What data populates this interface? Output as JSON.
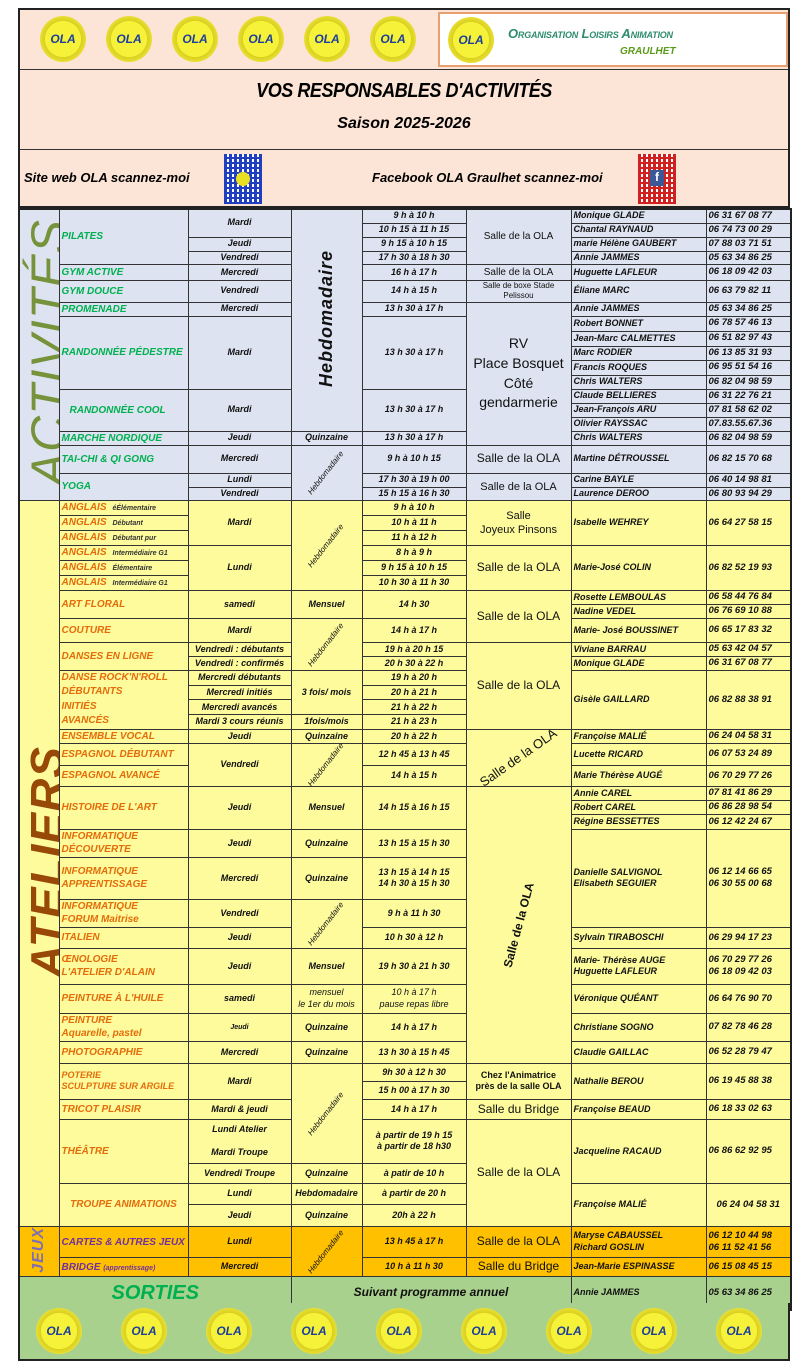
{
  "header": {
    "logo_text": "OLA",
    "org_name": "Organisation Loisirs Animation",
    "city": "GRAULHET",
    "title": "VOS RESPONSABLES D'ACTIVITÉS",
    "season": "Saison 2025-2026"
  },
  "qr": {
    "site_label": "Site web OLA scannez-moi",
    "facebook_label": "Facebook OLA Graulhet scannez-moi",
    "facebook_glyph": "f"
  },
  "colors": {
    "header_bg": "#fce4d6",
    "activites_bg": "#dde3f0",
    "ateliers_bg": "#fdfb9c",
    "jeux_bg": "#ffc000",
    "sorties_bg": "#a9d18e",
    "activites_name": "#00b050",
    "ateliers_name": "#e46c0a",
    "jeux_name": "#7030a0"
  },
  "freq": {
    "weekly": "Hebdomadaire",
    "fortnight": "Quinzaine",
    "monthly": "Mensuel"
  },
  "places": {
    "ola": "Salle de la OLA",
    "bridge": "Salle du Bridge"
  },
  "activites": {
    "label": "ACTIVITÉS",
    "rv_place": "RV\nPlace Bosquet\nCôté\ngendarmerie",
    "items": [
      {
        "name": "PILATES",
        "days": [
          "Mardi",
          "Jeudi",
          "Vendredi"
        ],
        "times": [
          "9 h  à 10 h",
          "10 h 15 à 11 h 15",
          "9 h 15 à 10 h 15",
          "17 h 30 à 18 h 30"
        ],
        "contacts": [
          {
            "name": "Monique GLADE",
            "phone": "06 31 67 08 77"
          },
          {
            "name": "Chantal RAYNAUD",
            "phone": "06 74 73 00 29"
          },
          {
            "name": "marie Hélène GAUBERT",
            "phone": "07 88 03 71 51"
          },
          {
            "name": "Annie JAMMES",
            "phone": "05 63 34 86 25"
          }
        ]
      },
      {
        "name": "GYM ACTIVE",
        "day": "Mercredi",
        "time": "16 h  à 17 h",
        "contacts": [
          {
            "name": "Huguette LAFLEUR",
            "phone": "06 18 09 42 03"
          }
        ]
      },
      {
        "name": "GYM DOUCE",
        "day": "Vendredi",
        "time": "14 h  à 15 h",
        "place": "Salle de boxe Stade Pelissou",
        "contacts": [
          {
            "name": "Éliane MARC",
            "phone": "06 63 79 82 11"
          }
        ]
      },
      {
        "name": "PROMENADE",
        "day": "Mercredi",
        "time": "13 h 30 à 17 h",
        "contacts": [
          {
            "name": "Annie JAMMES",
            "phone": "05 63 34 86 25"
          }
        ]
      },
      {
        "name": "RANDONNÉE PÉDESTRE",
        "day": "Mardi",
        "time": "13 h 30 à 17 h",
        "contacts": [
          {
            "name": "Robert BONNET",
            "phone": "06 78 57 46 13"
          },
          {
            "name": "Jean-Marc CALMETTES",
            "phone": "06 51 82 97 43"
          },
          {
            "name": "Marc RODIER",
            "phone": "06 13 85 31 93"
          },
          {
            "name": "Francis ROQUES",
            "phone": "06 95 51 54 16"
          },
          {
            "name": "Chris WALTERS",
            "phone": "06 82 04 98 59"
          }
        ]
      },
      {
        "name": "RANDONNÉE COOL",
        "day": "Mardi",
        "time": "13 h 30 à 17 h",
        "contacts": [
          {
            "name": "Claude BELLIERES",
            "phone": "06 31 22 76 21"
          },
          {
            "name": "Jean-François ARU",
            "phone": "07 81 58 62 02"
          },
          {
            "name": "Olivier RAYSSAC",
            "phone": "07.83.55.67.36"
          }
        ]
      },
      {
        "name": "MARCHE NORDIQUE",
        "day": "Jeudi",
        "time": "13 h 30 à 17 h",
        "contacts": [
          {
            "name": "Chris WALTERS",
            "phone": "06 82 04 98 59"
          }
        ]
      },
      {
        "name": "TAI-CHI & QI GONG",
        "day": "Mercredi",
        "time": "9 h  à 10 h 15",
        "contacts": [
          {
            "name": "Martine DÉTROUSSEL",
            "phone": "06 82 15 70 68"
          }
        ]
      },
      {
        "name": "YOGA",
        "days": [
          "Lundi",
          "Vendredi"
        ],
        "times": [
          "17 h 30 à 19 h 00",
          "15 h 15 à 16 h 30"
        ],
        "contacts": [
          {
            "name": "Carine BAYLE",
            "phone": "06 40 14 98 81"
          },
          {
            "name": "Laurence DEROO",
            "phone": "06 80 93 94 29"
          }
        ]
      }
    ]
  },
  "ateliers": {
    "label": "ATELIERS",
    "anglais": {
      "name": "ANGLAIS",
      "levels": [
        "éÉlémentaire",
        "Débutant",
        "Débutant pur",
        "Intermédiaire   G1",
        "Élémentaire",
        "Intermédiaire   G1"
      ],
      "times": [
        "9 h  à 10 h",
        "10 h  à 11 h",
        "11 h  à 12 h",
        "8 h à 9 h",
        "9 h 15 à 10 h 15",
        "10 h 30 à 11 h 30"
      ],
      "days": [
        "Mardi",
        "Lundi"
      ],
      "places": [
        "Salle\nJoyeux Pinsons",
        "Salle de la OLA"
      ],
      "contacts": [
        {
          "name": "Isabelle WEHREY",
          "phone": "06 64 27 58 15"
        },
        {
          "name": "Marie-José COLIN",
          "phone": "06 82 52 19 93"
        }
      ]
    },
    "items": [
      {
        "name": "ART FLORAL",
        "day": "samedi",
        "freq": "Mensuel",
        "time": "14 h 30",
        "contacts": [
          {
            "name": "Rosette LEMBOULAS",
            "phone": "06 58 44 76 84"
          },
          {
            "name": "Nadine VEDEL",
            "phone": "06 76 69 10 88"
          }
        ]
      },
      {
        "name": "COUTURE",
        "day": "Mardi",
        "time": "14 h  à 17 h",
        "contacts": [
          {
            "name": "Marie- José BOUSSINET",
            "phone": "06 65 17 83 32"
          }
        ]
      },
      {
        "name": "DANSES EN LIGNE",
        "days": [
          "Vendredi : débutants",
          "Vendredi : confirmés"
        ],
        "times": [
          "19 h à 20 h 15",
          "20 h 30 à 22 h"
        ],
        "contacts": [
          {
            "name": "Viviane BARRAU",
            "phone": "05 63 42 04 57"
          },
          {
            "name": "Monique GLADE",
            "phone": "06 31 67 08 77"
          }
        ]
      },
      {
        "name": "DANSE ROCK'N'ROLL\nDÉBUTANTS\nINITIÉS\nAVANCÉS",
        "days": [
          "Mercredi débutants",
          "Mercredi initiés",
          "Mercredi avancés",
          "Mardi 3 cours réunis"
        ],
        "freqs": [
          "3 fois/ mois",
          "1fois/mois"
        ],
        "times": [
          "19 h  à 20 h",
          "20 h  à 21 h",
          "21 h  à 22 h",
          "21 h  à 23 h"
        ],
        "contacts": [
          {
            "name": "Gisèle GAILLARD",
            "phone": "06 82 88 38 91"
          }
        ]
      },
      {
        "name": "ENSEMBLE VOCAL",
        "day": "Jeudi",
        "time": "20 h  à 22 h",
        "contacts": [
          {
            "name": "Françoise MALIÉ",
            "phone": "06 24 04 58 31"
          }
        ]
      },
      {
        "name": "ESPAGNOL DÉBUTANT",
        "day": "Vendredi",
        "time": "12 h 45 à 13 h 45",
        "contacts": [
          {
            "name": "Lucette RICARD",
            "phone": "06 07 53 24 89"
          }
        ]
      },
      {
        "name": "ESPAGNOL AVANCÉ",
        "time": "14 h  à 15 h",
        "contacts": [
          {
            "name": "Marie Thérèse AUGÉ",
            "phone": "06 70 29 77 26"
          }
        ]
      },
      {
        "name": "HISTOIRE DE L'ART",
        "day": "Jeudi",
        "time": "14 h 15 à 16 h 15",
        "contacts": [
          {
            "name": "Annie CAREL",
            "phone": "07 81 41 86 29"
          },
          {
            "name": "Robert CAREL",
            "phone": "06 86 28 98 54"
          },
          {
            "name": "Régine BESSETTES",
            "phone": "06 12 42 24 67"
          }
        ]
      },
      {
        "name": "INFORMATIQUE\nDÉCOUVERTE",
        "day": "Jeudi",
        "time": "13 h 15 à 15 h 30",
        "contacts": [
          {
            "name": "Danielle SALVIGNOL\nElisabeth SEGUIER",
            "phone": "06 12 14 66 65\n06 30 55 00 68"
          }
        ]
      },
      {
        "name": "INFORMATIQUE\nAPPRENTISSAGE",
        "day": "Mercredi",
        "time": "13 h 15 à 14 h 15\n14 h 30 à 15 h 30"
      },
      {
        "name": "INFORMATIQUE\nFORUM Maitrise",
        "day": "Vendredi",
        "time": "9 h  à 11 h 30"
      },
      {
        "name": "ITALIEN",
        "day": "Jeudi",
        "time": "10 h 30 à 12 h",
        "contacts": [
          {
            "name": "Sylvain TIRABOSCHI",
            "phone": "06 29 94 17 23"
          }
        ]
      },
      {
        "name": "ŒNOLOGIE\nL'ATELIER D'ALAIN",
        "day": "Jeudi",
        "time": "19 h 30 à 21 h 30",
        "contacts": [
          {
            "name": "Marie- Thérèse AUGE\n Huguette LAFLEUR",
            "phone": "06 70 29 77 26\n06 18 09 42 03"
          }
        ]
      },
      {
        "name": "PEINTURE À L'HUILE",
        "day": "samedi",
        "freq": "mensuel\nle 1er du mois",
        "time": "10 h à 17 h\npause repas libre",
        "contacts": [
          {
            "name": "Véronique QUÉANT",
            "phone": "06 64 76 90 70"
          }
        ]
      },
      {
        "name": "PEINTURE\nAquarelle, pastel",
        "day": "Jeudi",
        "time": "14 h  à 17 h",
        "contacts": [
          {
            "name": "Christiane SOGNO",
            "phone": "07 82 78 46 28"
          }
        ]
      },
      {
        "name": "PHOTOGRAPHIE",
        "day": "Mercredi",
        "time": "13 h 30 à 15 h 45",
        "contacts": [
          {
            "name": "Claudie GAILLAC",
            "phone": "06 52 28 79 47"
          }
        ]
      },
      {
        "name": "POTERIE\nSCULPTURE SUR ARGILE",
        "day": "Mardi",
        "times": [
          "9h 30 à 12 h 30",
          "15 h 00 à 17 h 30"
        ],
        "place": "Chez l'Animatrice\nprès de la salle OLA",
        "contacts": [
          {
            "name": "Nathalie BEROU",
            "phone": "06 19 45 88 38"
          }
        ]
      },
      {
        "name": "TRICOT PLAISIR",
        "day": "Mardi & jeudi",
        "time": "14 h  à 17 h",
        "contacts": [
          {
            "name": "Françoise BEAUD",
            "phone": "06 18 33 02 63"
          }
        ]
      },
      {
        "name": "THÉÂTRE",
        "days": [
          "Lundi    Atelier\n\nMardi   Troupe",
          "Vendredi   Troupe"
        ],
        "times": [
          "à partir de 19 h 15\nà partir de 18 h30",
          "à patir de 10 h"
        ],
        "contacts": [
          {
            "name": "Jacqueline RACAUD",
            "phone": "06 86 62 92 95"
          }
        ]
      },
      {
        "name": "TROUPE ANIMATIONS",
        "days": [
          "Lundi",
          "Jeudi"
        ],
        "times": [
          "à partir de 20 h",
          "20h à 22 h"
        ],
        "contacts": [
          {
            "name": "Françoise MALIÉ",
            "phone": "06 24 04 58 31"
          }
        ]
      }
    ]
  },
  "jeux": {
    "label": "JEUX",
    "items": [
      {
        "name": "CARTES & AUTRES JEUX",
        "day": "Lundi",
        "time": "13 h 45 à 17 h",
        "contacts": [
          {
            "name": "Maryse CABAUSSEL\nRichard GOSLIN",
            "phone": "06 12 10 44 98\n06 11 52 41 56"
          }
        ]
      },
      {
        "name": "BRIDGE",
        "note": "(apprentissage)",
        "day": "Mercredi",
        "time": "10 h  à 11 h 30",
        "contacts": [
          {
            "name": "Jean-Marie ESPINASSE",
            "phone": "06 15 08 45 15"
          }
        ]
      }
    ]
  },
  "sorties": {
    "label": "SORTIES",
    "schedule": "Suivant programme annuel",
    "contact": "Annie JAMMES",
    "phone": "05 63 34 86 25"
  }
}
